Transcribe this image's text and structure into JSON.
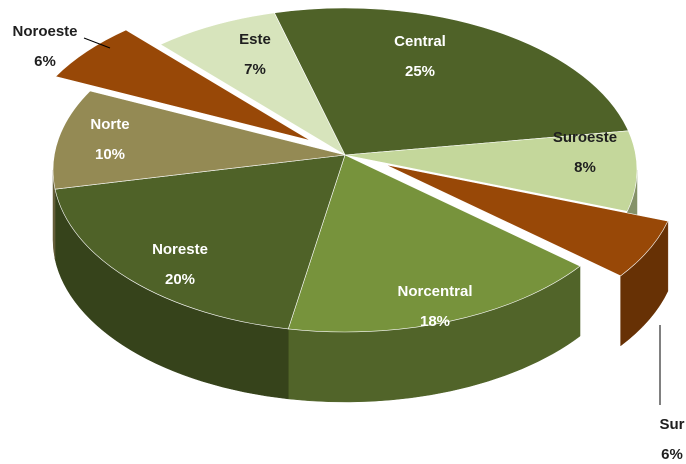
{
  "chart_data": {
    "type": "pie3d",
    "categories": [
      "Central",
      "Suroeste",
      "Sur",
      "Norcentral",
      "Noreste",
      "Norte",
      "Noroeste",
      "Este"
    ],
    "values": [
      25,
      8,
      6,
      18,
      20,
      10,
      6,
      7
    ],
    "value_labels": [
      "25%",
      "8%",
      "6%",
      "18%",
      "20%",
      "10%",
      "6%",
      "7%"
    ],
    "colors": [
      "#4f6228",
      "#c4d79b",
      "#984807",
      "#77933c",
      "#4f6228",
      "#948a54",
      "#984807",
      "#d7e4bc"
    ],
    "explode": [
      false,
      false,
      true,
      false,
      false,
      false,
      true,
      false
    ]
  }
}
